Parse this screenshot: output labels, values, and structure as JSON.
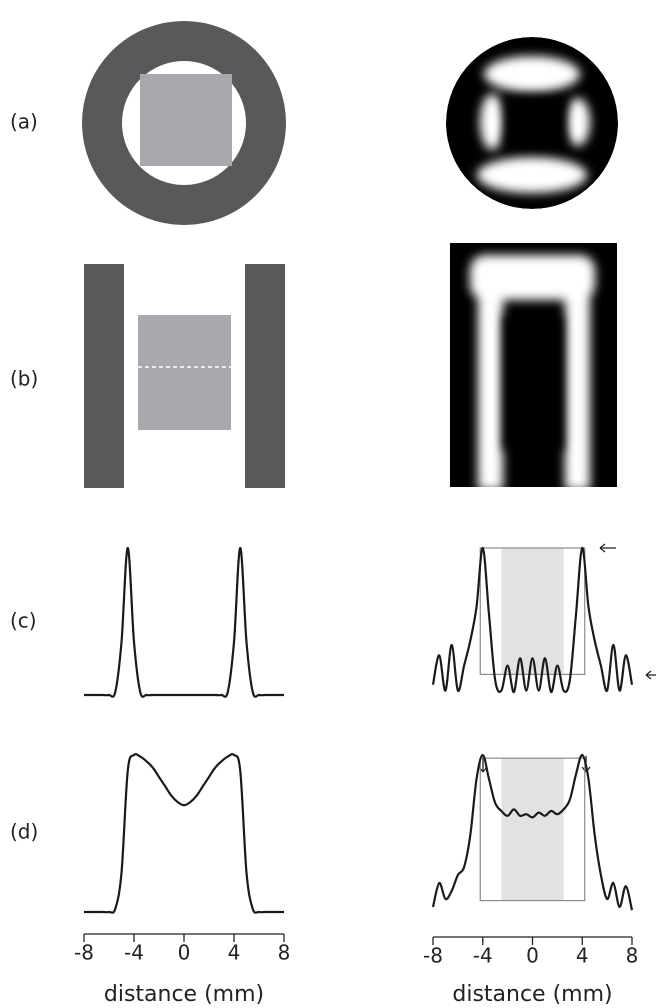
{
  "panel_labels": [
    "(a)",
    "(b)",
    "(c)",
    "(d)"
  ],
  "chart_data": [
    {
      "type": "line",
      "x": [
        -8,
        -7.5,
        -7,
        -6.5,
        -6,
        -5.5,
        -5,
        -4.5,
        -4,
        -3.5,
        -3,
        -2.5,
        -2,
        -1.5,
        -1,
        -0.5,
        0,
        0.5,
        1,
        1.5,
        2,
        2.5,
        3,
        3.5,
        4,
        4.5,
        5,
        5.5,
        6,
        6.5,
        7,
        7.5,
        8
      ],
      "series": [
        {
          "color": "#1a1a1a",
          "values": [
            0,
            0,
            0,
            0,
            0,
            0.02,
            0.36,
            1,
            0.36,
            0.02,
            0,
            0,
            0,
            0,
            0,
            0,
            0,
            0,
            0,
            0,
            0,
            0,
            0,
            0.02,
            0.36,
            1,
            0.36,
            0.02,
            0,
            0,
            0,
            0,
            0
          ]
        }
      ],
      "xlim": [
        -8,
        8
      ],
      "ylim": [
        0,
        1
      ]
    },
    {
      "type": "line",
      "x": [
        -8,
        -7.5,
        -7,
        -6.5,
        -6,
        -5.5,
        -5,
        -4.5,
        -4,
        -3.5,
        -3,
        -2.5,
        -2,
        -1.5,
        -1,
        -0.5,
        0,
        0.5,
        1,
        1.5,
        2,
        2.5,
        3,
        3.5,
        4,
        4.5,
        5,
        5.5,
        6,
        6.5,
        7,
        7.5,
        8
      ],
      "series": [
        {
          "color": "#1a1a1a",
          "values": [
            0.07,
            0.27,
            0.03,
            0.34,
            0.03,
            0.2,
            0.37,
            0.6,
            1,
            0.55,
            0.1,
            0.03,
            0.2,
            0.02,
            0.25,
            0.03,
            0.25,
            0.03,
            0.25,
            0.02,
            0.2,
            0.03,
            0.1,
            0.55,
            1,
            0.6,
            0.37,
            0.2,
            0.03,
            0.34,
            0.03,
            0.27,
            0.07
          ]
        }
      ],
      "xlim": [
        -8,
        8
      ],
      "ylim": [
        0,
        1
      ],
      "highlight": {
        "outer": [
          -4.2,
          4.2
        ],
        "inner": [
          -2.5,
          2.5
        ],
        "y": [
          0.14,
          1
        ]
      }
    },
    {
      "type": "line",
      "x": [
        -8,
        -7.5,
        -7,
        -6.5,
        -6,
        -5.5,
        -5,
        -4.5,
        -4,
        -3.5,
        -3,
        -2.5,
        -2,
        -1.5,
        -1,
        -0.5,
        0,
        0.5,
        1,
        1.5,
        2,
        2.5,
        3,
        3.5,
        4,
        4.5,
        5,
        5.5,
        6,
        6.5,
        7,
        7.5,
        8
      ],
      "series": [
        {
          "color": "#1a1a1a",
          "values": [
            0,
            0,
            0,
            0,
            0,
            0.02,
            0.25,
            0.9,
            1,
            0.99,
            0.96,
            0.92,
            0.86,
            0.8,
            0.74,
            0.7,
            0.68,
            0.7,
            0.74,
            0.8,
            0.86,
            0.92,
            0.96,
            0.99,
            1,
            0.9,
            0.25,
            0.02,
            0,
            0,
            0,
            0,
            0
          ]
        }
      ],
      "xlim": [
        -8,
        8
      ],
      "ylim": [
        0,
        1
      ],
      "xticks": [
        -8,
        -4,
        0,
        4,
        8
      ],
      "x_label": "distance (mm)"
    },
    {
      "type": "line",
      "x": [
        -8,
        -7.5,
        -7,
        -6.5,
        -6,
        -5.5,
        -5,
        -4.5,
        -4,
        -3.5,
        -3,
        -2.5,
        -2,
        -1.5,
        -1,
        -0.5,
        0,
        0.5,
        1,
        1.5,
        2,
        2.5,
        3,
        3.5,
        4,
        4.5,
        5,
        5.5,
        6,
        6.5,
        7,
        7.5,
        8
      ],
      "series": [
        {
          "color": "#1a1a1a",
          "values": [
            0.05,
            0.2,
            0.1,
            0.15,
            0.25,
            0.3,
            0.5,
            0.85,
            1,
            0.85,
            0.7,
            0.65,
            0.62,
            0.66,
            0.62,
            0.63,
            0.61,
            0.64,
            0.62,
            0.65,
            0.63,
            0.66,
            0.72,
            0.88,
            1,
            0.85,
            0.5,
            0.25,
            0.1,
            0.2,
            0.05,
            0.18,
            0.03
          ]
        }
      ],
      "xlim": [
        -8,
        8
      ],
      "ylim": [
        0,
        1
      ],
      "xticks": [
        -8,
        -4,
        0,
        4,
        8
      ],
      "x_label": "distance (mm)",
      "highlight": {
        "outer": [
          -4.2,
          4.2
        ],
        "inner": [
          -2.5,
          2.5
        ],
        "y": [
          0.09,
          0.98
        ]
      }
    }
  ]
}
